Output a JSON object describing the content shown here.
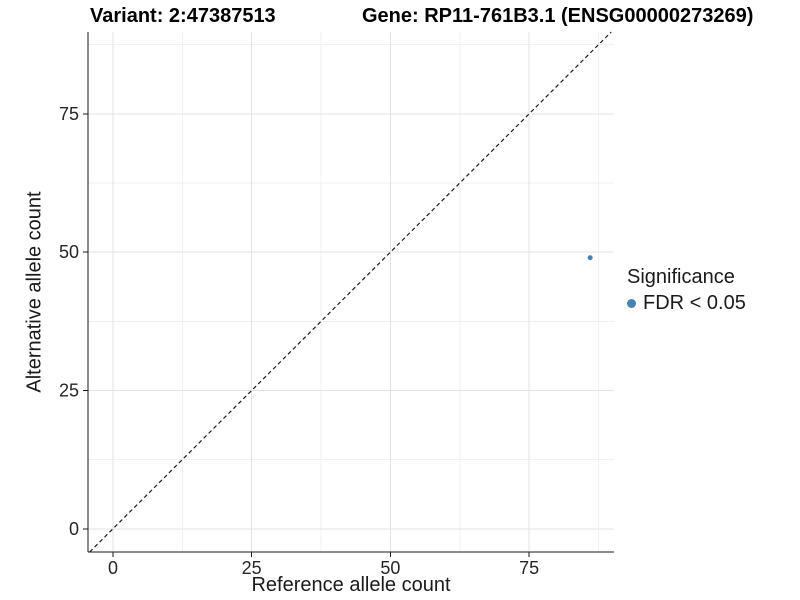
{
  "titles": {
    "variant": "Variant: 2:47387513",
    "gene": "Gene: RP11-761B3.1 (ENSG00000273269)"
  },
  "chart_data": {
    "type": "scatter",
    "variant_title": "Variant: 2:47387513",
    "gene_title": "Gene: RP11-761B3.1 (ENSG00000273269)",
    "xlabel": "Reference allele count",
    "ylabel": "Alternative allele count",
    "x_ticks": [
      0,
      25,
      50,
      75
    ],
    "y_ticks": [
      0,
      25,
      50,
      75
    ],
    "x_minor_ticks": [
      12.5,
      37.5,
      62.5,
      87.5
    ],
    "y_minor_ticks": [
      12.5,
      37.5,
      62.5,
      87.5
    ],
    "xlim": [
      -4.5,
      90.3
    ],
    "ylim": [
      -4.2,
      89.8
    ],
    "grid": true,
    "series": [
      {
        "name": "FDR < 0.05",
        "color": "#4682B4",
        "points": [
          {
            "x": 86,
            "y": 49
          }
        ]
      }
    ],
    "point_radius": 2.5,
    "reference_line": {
      "kind": "identity-y-equals-x",
      "style": "dashed",
      "color": "#1a1a1a"
    },
    "legend": {
      "position": "right",
      "title": "Significance",
      "items": [
        {
          "label": "FDR < 0.05",
          "color": "#4682B4"
        }
      ]
    },
    "colors": {
      "background": "#ffffff",
      "grid_major": "#e3e3e3",
      "grid_minor": "#f0f0f0",
      "axis": "#1a1a1a",
      "tick_label": "#262626",
      "point": "#4682B4"
    }
  }
}
